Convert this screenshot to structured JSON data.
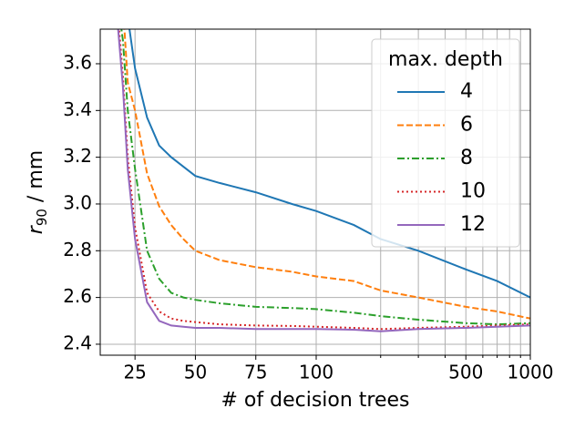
{
  "chart_data": {
    "type": "line",
    "xlabel": "# of decision trees",
    "ylabel": {
      "symbol": "r",
      "subscript": "90",
      "unit": " / mm"
    },
    "legend_title": "max. depth",
    "legend_position": "upper right",
    "grid": true,
    "xscale": "linear-log",
    "xlinthresh": 100,
    "xlim": [
      10.6,
      1000
    ],
    "xticks": [
      25,
      50,
      75,
      100,
      500,
      1000
    ],
    "xminor": [
      200,
      300,
      400,
      600,
      700,
      800,
      900
    ],
    "ylim": [
      2.353,
      3.748
    ],
    "yticks": [
      {
        "value": 2.4,
        "label": "2.4"
      },
      {
        "value": 2.6,
        "label": "2.6"
      },
      {
        "value": 2.8,
        "label": "2.8"
      },
      {
        "value": 3.0,
        "label": "3.0"
      },
      {
        "value": 3.2,
        "label": "3.2"
      },
      {
        "value": 3.4,
        "label": "3.4"
      },
      {
        "value": 3.6,
        "label": "3.6"
      }
    ],
    "x": [
      18,
      20,
      22,
      25,
      30,
      35,
      40,
      45,
      50,
      60,
      75,
      90,
      100,
      150,
      200,
      300,
      500,
      700,
      1000
    ],
    "series": [
      {
        "name": "4",
        "color": "#1f77b4",
        "linestyle": "solid",
        "values": [
          null,
          null,
          3.8,
          3.58,
          3.37,
          3.25,
          3.2,
          3.16,
          3.12,
          3.09,
          3.05,
          3.0,
          2.97,
          2.91,
          2.85,
          2.8,
          2.72,
          2.67,
          2.6
        ]
      },
      {
        "name": "6",
        "color": "#ff7f0e",
        "linestyle": "dashed",
        "values": [
          null,
          3.85,
          3.52,
          3.4,
          3.13,
          2.99,
          2.91,
          2.85,
          2.8,
          2.76,
          2.73,
          2.71,
          2.69,
          2.67,
          2.63,
          2.6,
          2.56,
          2.54,
          2.51
        ]
      },
      {
        "name": "8",
        "color": "#2ca02c",
        "linestyle": "dashdot",
        "values": [
          3.85,
          3.7,
          3.4,
          3.15,
          2.8,
          2.68,
          2.62,
          2.6,
          2.59,
          2.575,
          2.56,
          2.555,
          2.55,
          2.535,
          2.52,
          2.505,
          2.49,
          2.485,
          2.49
        ]
      },
      {
        "name": "10",
        "color": "#d62728",
        "linestyle": "dotted",
        "values": [
          3.8,
          3.55,
          3.2,
          2.9,
          2.62,
          2.54,
          2.51,
          2.5,
          2.495,
          2.485,
          2.48,
          2.478,
          2.475,
          2.47,
          2.465,
          2.47,
          2.475,
          2.48,
          2.485
        ]
      },
      {
        "name": "12",
        "color": "#9467bd",
        "linestyle": "solid",
        "values": [
          3.75,
          3.5,
          3.15,
          2.85,
          2.58,
          2.5,
          2.48,
          2.475,
          2.47,
          2.47,
          2.465,
          2.465,
          2.465,
          2.462,
          2.455,
          2.465,
          2.47,
          2.475,
          2.48
        ]
      }
    ]
  }
}
